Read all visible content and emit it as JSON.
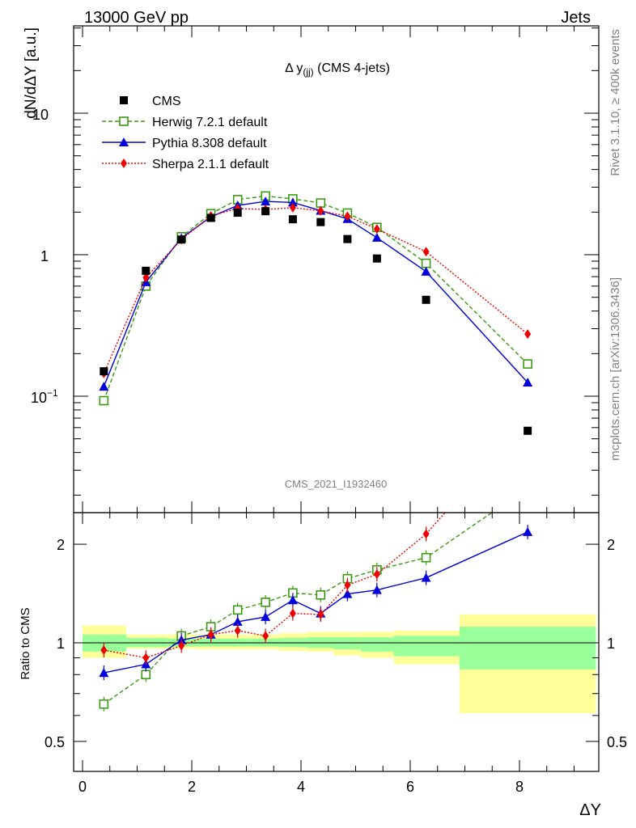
{
  "header": {
    "left": "13000 GeV pp",
    "right": "Jets"
  },
  "side_labels": {
    "rivet": "Rivet 3.1.10, ≥ 400k events",
    "mcplots": "mcplots.cern.ch [arXiv:1306.3436]"
  },
  "analysis_id": "CMS_2021_I1932460",
  "chart_data": [
    {
      "type": "line",
      "scale": "log",
      "title_main": "Δ y",
      "title_sub": "(jj)",
      "title_tail": " (CMS 4-jets)",
      "ylabel": "dN/dΔY [a.u.]",
      "xlim": [
        -0.3,
        9.6
      ],
      "ylim": [
        0.018,
        50
      ],
      "yticks_labels": [
        "10",
        "1"
      ],
      "ytick_exp_label": {
        "base": "10",
        "exp": "−1"
      },
      "legend_position": "top-left",
      "x": [
        0.39,
        1.16,
        1.81,
        2.35,
        2.84,
        3.35,
        3.85,
        4.36,
        4.85,
        5.39,
        6.29,
        8.15
      ],
      "series": [
        {
          "name": "CMS",
          "color": "#000000",
          "marker": "filled-square",
          "line": "none",
          "values": [
            0.15,
            0.77,
            1.28,
            1.82,
            1.98,
            2.03,
            1.78,
            1.7,
            1.29,
            0.94,
            0.48,
            0.057
          ]
        },
        {
          "name": "Herwig 7.2.1 default",
          "color": "#3a9a12",
          "marker": "open-square",
          "line": "dashed",
          "values": [
            0.093,
            0.6,
            1.34,
            1.95,
            2.45,
            2.6,
            2.48,
            2.32,
            1.97,
            1.56,
            0.87,
            0.169
          ]
        },
        {
          "name": "Pythia 8.308 default",
          "color": "#0000dd",
          "marker": "filled-triangle",
          "line": "solid",
          "values": [
            0.117,
            0.64,
            1.31,
            1.85,
            2.23,
            2.38,
            2.34,
            2.05,
            1.79,
            1.32,
            0.76,
            0.125
          ]
        },
        {
          "name": "Sherpa 2.1.1 default",
          "color": "#ee0000",
          "marker": "filled-diamond",
          "line": "dotted",
          "values": [
            0.145,
            0.69,
            1.28,
            1.88,
            2.12,
            2.09,
            2.15,
            2.04,
            1.87,
            1.52,
            1.05,
            0.275
          ]
        }
      ]
    },
    {
      "type": "line",
      "scale": "log",
      "ylabel": "Ratio to CMS",
      "xlabel": "ΔY",
      "xlim": [
        -0.3,
        9.6
      ],
      "ylim": [
        0.42,
        2.42
      ],
      "xticks": [
        0,
        2,
        4,
        6,
        8
      ],
      "yticks": [
        0.5,
        1,
        2
      ],
      "ytick_labels": [
        "0.5",
        "1",
        "2"
      ],
      "bands": {
        "bin_edges": [
          0,
          0.8,
          1.55,
          2.1,
          2.6,
          3.1,
          3.6,
          4.1,
          4.6,
          5.1,
          5.7,
          6.9,
          9.4
        ],
        "green_lo": [
          0.94,
          0.97,
          0.975,
          0.975,
          0.975,
          0.975,
          0.97,
          0.965,
          0.955,
          0.94,
          0.91,
          0.83
        ],
        "green_hi": [
          1.06,
          1.035,
          1.03,
          1.03,
          1.03,
          1.03,
          1.035,
          1.04,
          1.04,
          1.04,
          1.05,
          1.12
        ],
        "yellow_lo": [
          0.9,
          0.96,
          0.96,
          0.955,
          0.955,
          0.955,
          0.945,
          0.94,
          0.915,
          0.9,
          0.86,
          0.61
        ],
        "yellow_hi": [
          1.13,
          1.06,
          1.06,
          1.06,
          1.06,
          1.06,
          1.07,
          1.08,
          1.08,
          1.08,
          1.09,
          1.22
        ]
      },
      "x": [
        0.39,
        1.16,
        1.81,
        2.35,
        2.84,
        3.35,
        3.85,
        4.36,
        4.85,
        5.39,
        6.29,
        8.15
      ],
      "series": [
        {
          "name": "Herwig 7.2.1 default",
          "color": "#3a9a12",
          "marker": "open-square",
          "line": "dashed",
          "values": [
            0.65,
            0.8,
            1.05,
            1.12,
            1.26,
            1.33,
            1.42,
            1.4,
            1.57,
            1.67,
            1.82,
            2.97
          ]
        },
        {
          "name": "Pythia 8.308 default",
          "color": "#0000dd",
          "marker": "filled-triangle",
          "line": "solid",
          "values": [
            0.81,
            0.86,
            1.02,
            1.06,
            1.16,
            1.2,
            1.35,
            1.23,
            1.41,
            1.45,
            1.58,
            2.18
          ]
        },
        {
          "name": "Sherpa 2.1.1 default",
          "color": "#ee0000",
          "marker": "filled-diamond",
          "line": "dotted",
          "values": [
            0.95,
            0.9,
            0.98,
            1.06,
            1.09,
            1.05,
            1.23,
            1.22,
            1.5,
            1.62,
            2.15,
            4.8
          ]
        }
      ]
    }
  ]
}
